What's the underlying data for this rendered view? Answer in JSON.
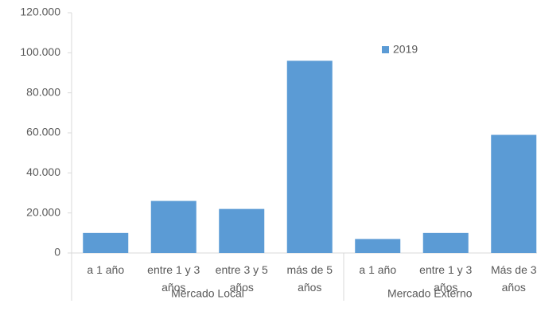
{
  "chart_data": {
    "type": "bar",
    "groups": [
      {
        "label": "Mercado Local",
        "categories": [
          "a 1 año",
          "entre 1 y 3 años",
          "entre 3 y 5 años",
          "más de 5 años"
        ]
      },
      {
        "label": "Mercado Externo",
        "categories": [
          "a 1 año",
          "entre 1 y 3 años",
          "Más de 3 años"
        ]
      }
    ],
    "series": [
      {
        "name": "2019",
        "color": "#5b9bd5",
        "values": [
          10000,
          26000,
          22000,
          96000,
          7000,
          10000,
          59000
        ]
      }
    ],
    "ylim": [
      0,
      120000
    ],
    "yticks": [
      0,
      {
        "value": 20000,
        "label": "20.000"
      },
      {
        "value": 40000,
        "label": "40.000"
      },
      {
        "value": 60000,
        "label": "60.000"
      },
      {
        "value": 80000,
        "label": "80.000"
      },
      {
        "value": 100000,
        "label": "100.000"
      },
      {
        "value": 120000,
        "label": "120.000"
      }
    ],
    "grid": false,
    "legend": "top-right"
  }
}
